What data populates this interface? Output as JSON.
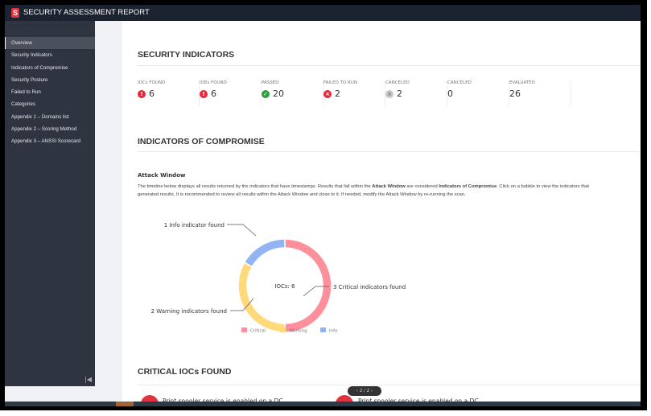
{
  "app": {
    "title": "SECURITY ASSESSMENT REPORT",
    "logo": "S"
  },
  "sidebar": {
    "items": [
      {
        "label": "Overview",
        "active": true
      },
      {
        "label": "Security Indicators"
      },
      {
        "label": "Indicators of Compromise"
      },
      {
        "label": "Security Posture"
      },
      {
        "label": "Failed to Run"
      },
      {
        "label": "Categories"
      },
      {
        "label": "Appendix 1 – Domains list"
      },
      {
        "label": "Appendix 2 – Scoring Method"
      },
      {
        "label": "Appendix 3 – ANSSI Scorecard"
      }
    ],
    "collapse_icon": "collapse-left-icon"
  },
  "security_indicators": {
    "title": "SECURITY INDICATORS",
    "stats": [
      {
        "label": "IOCs FOUND",
        "value": "6",
        "icon": "critical-icon",
        "color": "#e8283a"
      },
      {
        "label": "IOEs FOUND",
        "value": "6",
        "icon": "critical-icon",
        "color": "#e8283a"
      },
      {
        "label": "PASSED",
        "value": "20",
        "icon": "check-icon",
        "color": "#2e9e3e"
      },
      {
        "label": "FAILED TO RUN",
        "value": "2",
        "icon": "failed-warning-icon",
        "color": "#e8283a"
      },
      {
        "label": "CANCELED",
        "value": "2",
        "icon": "canceled-icon",
        "color": "#c8c8c8"
      },
      {
        "label": "CANCELED",
        "value": "0"
      },
      {
        "label": "EVALUATED",
        "value": "26"
      }
    ]
  },
  "ioc": {
    "title": "INDICATORS OF COMPROMISE",
    "subtitle": "Attack Window",
    "desc_1": "The timeline below displays all results returned by the indicators that have timestamps. Results that fall within the ",
    "desc_b1": "Attack Window",
    "desc_2": " are considered ",
    "desc_b2": "Indicators of Compromise",
    "desc_3": ". Click on a bubble to view the indicators that generated results. It is recommended to review all results within the Attack Window and close to it. If needed, modify the Attack Window by re-running the scan."
  },
  "chart_data": {
    "type": "pie",
    "donut": true,
    "center_label": "IOCs: 6",
    "categories": [
      "Critical",
      "Warning",
      "Info"
    ],
    "values": [
      3,
      2,
      1
    ],
    "colors": [
      "#ff8f9b",
      "#ffd97a",
      "#92b4f2"
    ],
    "annotations": [
      "3 Critical indicators found",
      "2 Warning indicators found",
      "1 Info indicator found"
    ],
    "legend": "bottom"
  },
  "critical": {
    "title": "CRITICAL IOCs FOUND",
    "items": [
      "Print spooler service is enabled on a DC",
      "Print spooler service is enabled on a DC"
    ],
    "pager": "2 / 2"
  }
}
